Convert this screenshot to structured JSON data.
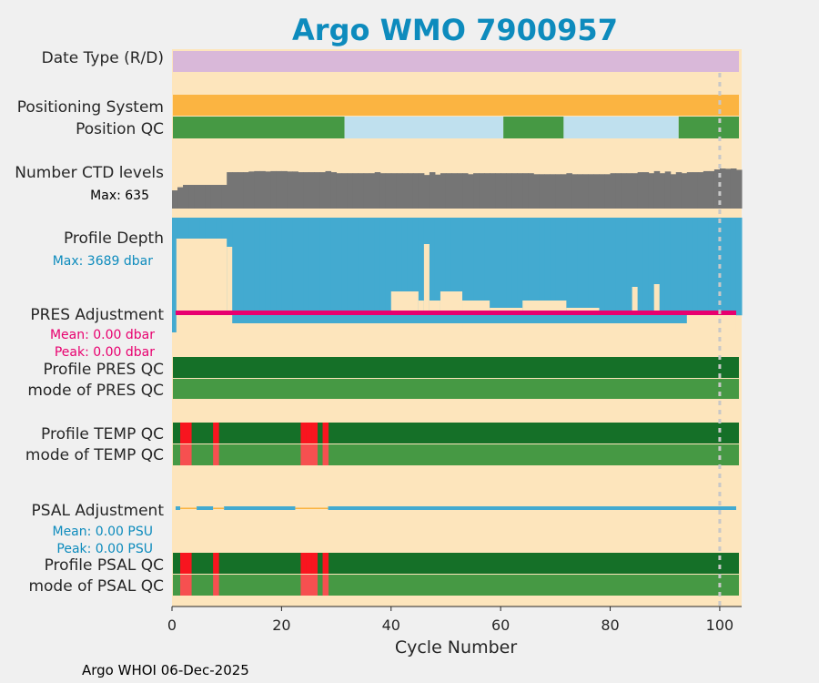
{
  "chart_data": {
    "type": "multi-track-strip",
    "title": "Argo WMO 7900957",
    "xlabel": "Cycle Number",
    "xlim": [
      0,
      104
    ],
    "xticks": [
      0,
      20,
      40,
      60,
      80,
      100
    ],
    "footer": "Argo WHOI 06-Dec-2025",
    "marker_cycle": 100,
    "colors": {
      "title": "#0d8bbd",
      "bg": "#fde5bc",
      "date_type": "#d9b8d9",
      "positioning": "#fbb441",
      "qc_good": "#469944",
      "qc_interp": "#bfe0ee",
      "ctd": "#757575",
      "depth": "#43aad0",
      "pres_adj": "#e8006f",
      "qc_dark": "#157028",
      "qc_bad": "#f8151f",
      "qc_bad_light": "#f65050",
      "psal_adj": "#43aad0",
      "psal_adj_zero": "#fbb441"
    },
    "tracks": {
      "date_type": {
        "label": "Date Type (R/D)",
        "value": "R"
      },
      "positioning": {
        "label": "Positioning System"
      },
      "position_qc": {
        "label": "Position QC",
        "segments": [
          [
            0,
            31.5,
            "1"
          ],
          [
            31.5,
            60.5,
            "8"
          ],
          [
            60.5,
            71.5,
            "1"
          ],
          [
            71.5,
            92.5,
            "8"
          ],
          [
            92.5,
            104,
            "1"
          ]
        ]
      },
      "ctd_levels": {
        "label": "Number CTD levels",
        "max_label": "Max: 635",
        "max": 635,
        "values": [
          288,
          338,
          375,
          375,
          375,
          375,
          375,
          375,
          375,
          375,
          576,
          576,
          576,
          576,
          587,
          593,
          593,
          587,
          593,
          593,
          593,
          587,
          587,
          576,
          576,
          576,
          576,
          576,
          593,
          576,
          560,
          560,
          560,
          560,
          560,
          560,
          560,
          576,
          560,
          560,
          560,
          560,
          560,
          560,
          560,
          560,
          532,
          576,
          538,
          560,
          560,
          560,
          560,
          560,
          544,
          560,
          560,
          560,
          560,
          560,
          560,
          560,
          560,
          560,
          560,
          560,
          544,
          544,
          544,
          544,
          544,
          544,
          560,
          544,
          544,
          544,
          544,
          544,
          544,
          544,
          560,
          560,
          560,
          560,
          560,
          576,
          576,
          560,
          593,
          560,
          587,
          544,
          576,
          560,
          576,
          576,
          576,
          593,
          593,
          620,
          635,
          630,
          635,
          614
        ]
      },
      "profile_depth": {
        "label": "Profile Depth",
        "max_label": "Max: 3689 dbar",
        "max": 3689,
        "values": [
          3689,
          3400,
          3195,
          3140,
          3140,
          3140,
          3140,
          3140,
          3140,
          3140,
          3140,
          3140,
          3140,
          3140,
          3140,
          3140,
          3140,
          3140,
          3140,
          3140,
          3140,
          3140,
          3140,
          3140,
          3140,
          3140,
          3140,
          3140,
          3140,
          3140,
          3140,
          3140,
          3140,
          3140,
          3140,
          3140,
          3140,
          3140,
          3140,
          3140,
          3140,
          3140,
          3140,
          3140,
          3140,
          3140,
          3140,
          3140,
          3140,
          3140,
          3140,
          3140,
          3140,
          3140,
          3140,
          3140,
          3140,
          3140,
          3140,
          3140,
          3140,
          3140,
          3140,
          3140,
          3140,
          3140,
          3140,
          3140,
          3140,
          3140,
          3140,
          3140,
          3140,
          3140,
          3140,
          3140,
          3140,
          3140,
          3140,
          3140,
          3140,
          3140,
          3140,
          3140,
          3140,
          3140,
          3140,
          3140,
          3140,
          3140,
          3140,
          3140,
          3140,
          3140,
          3140,
          3140,
          3140,
          3140,
          3140,
          3140,
          3140,
          3140,
          3140,
          3140
        ]
      },
      "pres_adjustment": {
        "label": "PRES Adjustment",
        "mean_label": "Mean: 0.00 dbar",
        "peak_label": "Peak: 0.00 dbar"
      },
      "profile_pres_qc": {
        "label": "Profile PRES QC"
      },
      "mode_pres_qc": {
        "label": "mode of PRES QC"
      },
      "profile_temp_qc": {
        "label": "Profile TEMP QC",
        "bad_cycles": [
          2,
          3,
          8,
          24,
          25,
          26,
          28
        ]
      },
      "mode_temp_qc": {
        "label": "mode of TEMP QC",
        "bad_cycles": [
          2,
          3,
          8,
          24,
          25,
          26,
          28
        ]
      },
      "psal_adjustment": {
        "label": "PSAL Adjustment",
        "mean_label": "Mean: 0.00 PSU",
        "peak_label": "Peak: 0.00 PSU"
      },
      "profile_psal_qc": {
        "label": "Profile PSAL QC",
        "bad_cycles": [
          2,
          3,
          8,
          24,
          25,
          26,
          28
        ]
      },
      "mode_psal_qc": {
        "label": "mode of PSAL QC",
        "bad_cycles": [
          2,
          3,
          8,
          24,
          25,
          26,
          28
        ]
      }
    }
  }
}
